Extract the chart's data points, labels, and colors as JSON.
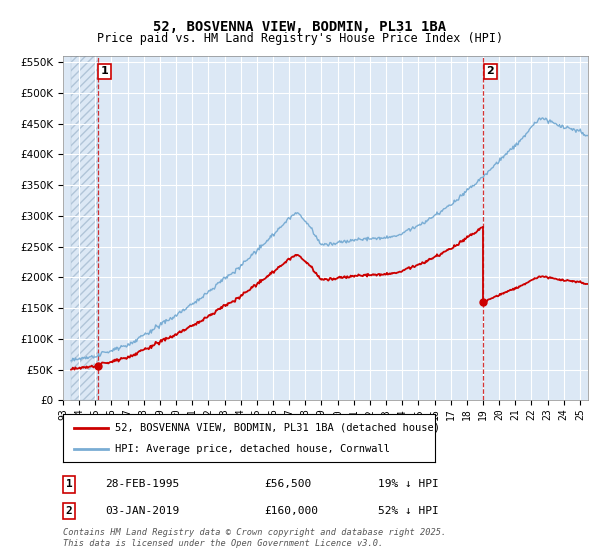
{
  "title": "52, BOSVENNA VIEW, BODMIN, PL31 1BA",
  "subtitle": "Price paid vs. HM Land Registry's House Price Index (HPI)",
  "legend_line1": "52, BOSVENNA VIEW, BODMIN, PL31 1BA (detached house)",
  "legend_line2": "HPI: Average price, detached house, Cornwall",
  "annotation1_label": "1",
  "annotation1_date": "28-FEB-1995",
  "annotation1_price": "£56,500",
  "annotation1_hpi": "19% ↓ HPI",
  "annotation2_label": "2",
  "annotation2_date": "03-JAN-2019",
  "annotation2_price": "£160,000",
  "annotation2_hpi": "52% ↓ HPI",
  "copyright": "Contains HM Land Registry data © Crown copyright and database right 2025.\nThis data is licensed under the Open Government Licence v3.0.",
  "red_line_color": "#cc0000",
  "blue_line_color": "#7aadd4",
  "plot_bg_color": "#dce8f5",
  "grid_color": "#ffffff",
  "fig_bg_color": "#ffffff",
  "ylim": [
    0,
    560000
  ],
  "yticks": [
    0,
    50000,
    100000,
    150000,
    200000,
    250000,
    300000,
    350000,
    400000,
    450000,
    500000,
    550000
  ],
  "sale1_x": 1995.15,
  "sale1_y": 56500,
  "sale2_x": 2019.01,
  "sale2_y": 160000,
  "xmin": 1993.5,
  "xmax": 2025.5
}
